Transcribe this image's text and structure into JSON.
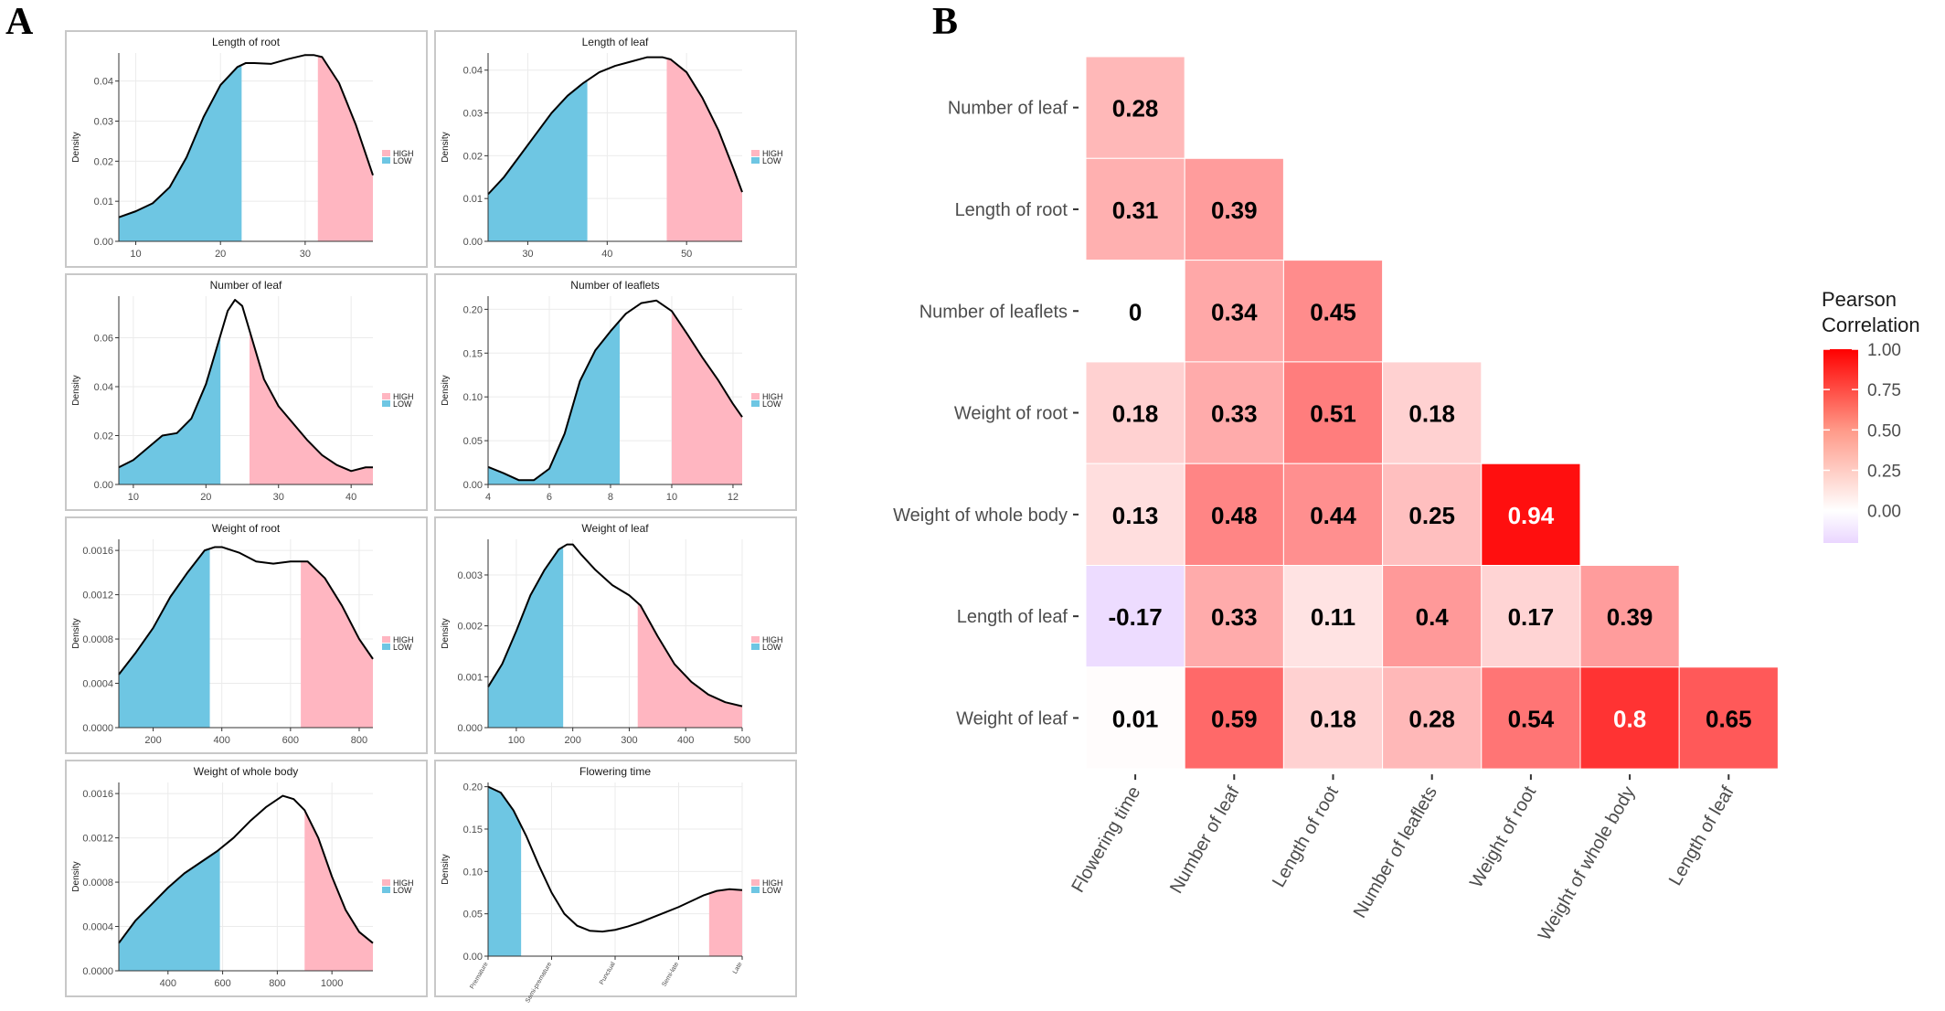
{
  "labels": {
    "panel_a": "A",
    "panel_b": "B"
  },
  "colors": {
    "high": "#ffb6c1",
    "low": "#6ec6e3",
    "grid": "#ebebeb",
    "pos": "#ff0000",
    "neg": "#9966ff"
  },
  "chart_data": [
    {
      "id": "panel-a",
      "type": "area",
      "legend": [
        "HIGH",
        "LOW"
      ],
      "ylabel": "Density",
      "subplots": [
        {
          "title": "Length of root",
          "xlim": [
            8,
            38
          ],
          "ylim": [
            0,
            0.047
          ],
          "xticks": [
            10,
            20,
            30
          ],
          "xtick_labels": [
            "10",
            "20",
            "30"
          ],
          "yticks": [
            0,
            0.01,
            0.02,
            0.03,
            0.04
          ],
          "ytick_labels": [
            "0.00",
            "0.01",
            "0.02",
            "0.03",
            "0.04"
          ],
          "low_max": 22.5,
          "high_min": 31.5,
          "x": [
            8,
            10,
            12,
            14,
            16,
            18,
            20,
            22,
            23,
            24,
            26,
            28,
            30,
            31,
            32,
            34,
            36,
            38
          ],
          "y": [
            0.006,
            0.0075,
            0.0095,
            0.0135,
            0.021,
            0.031,
            0.039,
            0.0435,
            0.0445,
            0.0445,
            0.0443,
            0.0455,
            0.0465,
            0.0465,
            0.046,
            0.0395,
            0.029,
            0.0165
          ]
        },
        {
          "title": "Length of leaf",
          "xlim": [
            25,
            57
          ],
          "ylim": [
            0,
            0.044
          ],
          "xticks": [
            30,
            40,
            50
          ],
          "xtick_labels": [
            "30",
            "40",
            "50"
          ],
          "yticks": [
            0,
            0.01,
            0.02,
            0.03,
            0.04
          ],
          "ytick_labels": [
            "0.00",
            "0.01",
            "0.02",
            "0.03",
            "0.04"
          ],
          "low_max": 37.5,
          "high_min": 47.5,
          "x": [
            25,
            27,
            29,
            31,
            33,
            35,
            37,
            39,
            41,
            43,
            45,
            47,
            48,
            50,
            52,
            54,
            56,
            57
          ],
          "y": [
            0.011,
            0.015,
            0.02,
            0.025,
            0.03,
            0.034,
            0.037,
            0.0395,
            0.041,
            0.042,
            0.043,
            0.043,
            0.0425,
            0.0395,
            0.0335,
            0.026,
            0.0165,
            0.0115
          ]
        },
        {
          "title": "Number of leaf",
          "xlim": [
            8,
            43
          ],
          "ylim": [
            0,
            0.077
          ],
          "xticks": [
            10,
            20,
            30,
            40
          ],
          "xtick_labels": [
            "10",
            "20",
            "30",
            "40"
          ],
          "yticks": [
            0,
            0.02,
            0.04,
            0.06
          ],
          "ytick_labels": [
            "0.00",
            "0.02",
            "0.04",
            "0.06"
          ],
          "low_max": 22,
          "high_min": 26,
          "x": [
            8,
            10,
            12,
            14,
            16,
            18,
            20,
            22,
            23,
            24,
            25,
            26,
            28,
            30,
            32,
            34,
            36,
            38,
            40,
            42,
            43
          ],
          "y": [
            0.007,
            0.01,
            0.015,
            0.02,
            0.021,
            0.027,
            0.041,
            0.061,
            0.071,
            0.0755,
            0.073,
            0.063,
            0.043,
            0.032,
            0.025,
            0.018,
            0.012,
            0.008,
            0.0055,
            0.007,
            0.007
          ]
        },
        {
          "title": "Number of leaflets",
          "xlim": [
            4,
            12.3
          ],
          "ylim": [
            0,
            0.215
          ],
          "xticks": [
            4,
            6,
            8,
            10,
            12
          ],
          "xtick_labels": [
            "4",
            "6",
            "8",
            "10",
            "12"
          ],
          "yticks": [
            0,
            0.05,
            0.1,
            0.15,
            0.2
          ],
          "ytick_labels": [
            "0.00",
            "0.05",
            "0.10",
            "0.15",
            "0.20"
          ],
          "low_max": 8.3,
          "high_min": 10,
          "x": [
            4,
            4.5,
            5,
            5.5,
            6,
            6.5,
            7,
            7.5,
            8,
            8.5,
            9,
            9.5,
            10,
            10.5,
            11,
            11.5,
            12,
            12.3
          ],
          "y": [
            0.02,
            0.013,
            0.005,
            0.005,
            0.018,
            0.058,
            0.118,
            0.153,
            0.175,
            0.195,
            0.207,
            0.21,
            0.198,
            0.172,
            0.145,
            0.12,
            0.092,
            0.077
          ]
        },
        {
          "title": "Weight of root",
          "xlim": [
            100,
            840
          ],
          "ylim": [
            0,
            0.0017
          ],
          "xticks": [
            200,
            400,
            600,
            800
          ],
          "xtick_labels": [
            "200",
            "400",
            "600",
            "800"
          ],
          "yticks": [
            0,
            0.0004,
            0.0008,
            0.0012,
            0.0016
          ],
          "ytick_labels": [
            "0.0000",
            "0.0004",
            "0.0008",
            "0.0012",
            "0.0016"
          ],
          "low_max": 365,
          "high_min": 630,
          "x": [
            100,
            150,
            200,
            250,
            300,
            350,
            380,
            400,
            450,
            500,
            550,
            600,
            650,
            700,
            750,
            800,
            840
          ],
          "y": [
            0.00048,
            0.00068,
            0.0009,
            0.00118,
            0.0014,
            0.0016,
            0.00163,
            0.00163,
            0.00158,
            0.0015,
            0.00148,
            0.0015,
            0.0015,
            0.00135,
            0.0011,
            0.0008,
            0.00062
          ]
        },
        {
          "title": "Weight of leaf",
          "xlim": [
            50,
            500
          ],
          "ylim": [
            0,
            0.0037
          ],
          "xticks": [
            100,
            200,
            300,
            400,
            500
          ],
          "xtick_labels": [
            "100",
            "200",
            "300",
            "400",
            "500"
          ],
          "yticks": [
            0,
            0.001,
            0.002,
            0.003
          ],
          "ytick_labels": [
            "0.000",
            "0.001",
            "0.002",
            "0.003"
          ],
          "low_max": 183,
          "high_min": 315,
          "x": [
            50,
            75,
            100,
            125,
            150,
            175,
            190,
            200,
            215,
            240,
            270,
            300,
            320,
            350,
            380,
            410,
            440,
            470,
            500
          ],
          "y": [
            0.0008,
            0.00125,
            0.0019,
            0.0026,
            0.0031,
            0.0035,
            0.0036,
            0.0036,
            0.0034,
            0.0031,
            0.0028,
            0.0026,
            0.0024,
            0.0018,
            0.00125,
            0.0009,
            0.00065,
            0.0005,
            0.00042
          ]
        },
        {
          "title": "Weight of whole body",
          "xlim": [
            220,
            1150
          ],
          "ylim": [
            0,
            0.0017
          ],
          "xticks": [
            400,
            600,
            800,
            1000
          ],
          "xtick_labels": [
            "400",
            "600",
            "800",
            "1000"
          ],
          "yticks": [
            0,
            0.0004,
            0.0008,
            0.0012,
            0.0016
          ],
          "ytick_labels": [
            "0.0000",
            "0.0004",
            "0.0008",
            "0.0012",
            "0.0016"
          ],
          "low_max": 590,
          "high_min": 900,
          "x": [
            220,
            280,
            340,
            400,
            460,
            520,
            580,
            640,
            700,
            760,
            820,
            860,
            900,
            950,
            1000,
            1050,
            1100,
            1150
          ],
          "y": [
            0.00025,
            0.00045,
            0.0006,
            0.00075,
            0.00088,
            0.00098,
            0.00108,
            0.0012,
            0.00135,
            0.00148,
            0.00158,
            0.00155,
            0.00145,
            0.0012,
            0.00085,
            0.00055,
            0.00035,
            0.00025
          ]
        },
        {
          "title": "Flowering time",
          "xlim": [
            0,
            1
          ],
          "ylim": [
            0,
            0.205
          ],
          "xticks": [
            0,
            0.25,
            0.5,
            0.75,
            1
          ],
          "xtick_labels": [
            "Premature",
            "Semi-premature",
            "Punctual",
            "Semi-late",
            "Late"
          ],
          "yticks": [
            0,
            0.05,
            0.1,
            0.15,
            0.2
          ],
          "ytick_labels": [
            "0.00",
            "0.05",
            "0.10",
            "0.15",
            "0.20"
          ],
          "low_max": 0.13,
          "high_min": 0.87,
          "rotated_xticks": true,
          "x": [
            0,
            0.05,
            0.1,
            0.15,
            0.2,
            0.25,
            0.3,
            0.35,
            0.4,
            0.45,
            0.5,
            0.55,
            0.6,
            0.65,
            0.7,
            0.75,
            0.8,
            0.85,
            0.9,
            0.95,
            1
          ],
          "y": [
            0.2,
            0.193,
            0.172,
            0.142,
            0.107,
            0.075,
            0.05,
            0.036,
            0.03,
            0.029,
            0.031,
            0.035,
            0.04,
            0.046,
            0.052,
            0.058,
            0.065,
            0.072,
            0.077,
            0.079,
            0.078
          ]
        }
      ]
    },
    {
      "id": "panel-b",
      "type": "heatmap",
      "rows": [
        "Number of leaf",
        "Length of root",
        "Number of leaflets",
        "Weight of root",
        "Weight of whole body",
        "Length of leaf",
        "Weight of leaf"
      ],
      "columns": [
        "Flowering time",
        "Number of leaf",
        "Length of root",
        "Number of leaflets",
        "Weight of root",
        "Weight of whole body",
        "Length of leaf"
      ],
      "values": [
        [
          0.28
        ],
        [
          0.31,
          0.39
        ],
        [
          0,
          0.34,
          0.45
        ],
        [
          0.18,
          0.33,
          0.51,
          0.18
        ],
        [
          0.13,
          0.48,
          0.44,
          0.25,
          0.94
        ],
        [
          -0.17,
          0.33,
          0.11,
          0.4,
          0.17,
          0.39
        ],
        [
          0.01,
          0.59,
          0.18,
          0.28,
          0.54,
          0.8,
          0.65
        ]
      ],
      "value_labels": [
        [
          "0.28"
        ],
        [
          "0.31",
          "0.39"
        ],
        [
          "0",
          "0.34",
          "0.45"
        ],
        [
          "0.18",
          "0.33",
          "0.51",
          "0.18"
        ],
        [
          "0.13",
          "0.48",
          "0.44",
          "0.25",
          "0.94"
        ],
        [
          "-0.17",
          "0.33",
          "0.11",
          "0.4",
          "0.17",
          "0.39"
        ],
        [
          "0.01",
          "0.59",
          "0.18",
          "0.28",
          "0.54",
          "0.8",
          "0.65"
        ]
      ],
      "legend": {
        "title": [
          "Pearson",
          "Correlation"
        ],
        "ticks": [
          1,
          0.75,
          0.5,
          0.25,
          0
        ],
        "tick_labels": [
          "1.00",
          "0.75",
          "0.50",
          "0.25",
          "0.00"
        ],
        "range": [
          -0.2,
          1
        ]
      }
    }
  ]
}
